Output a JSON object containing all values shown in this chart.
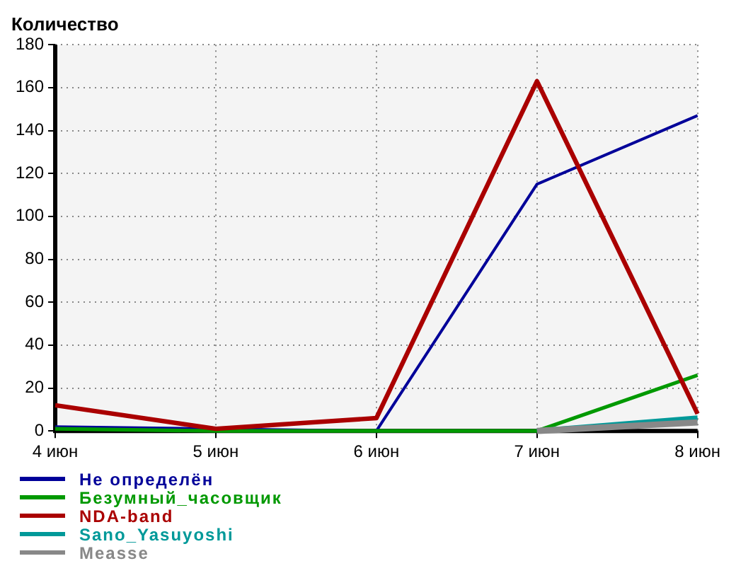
{
  "chart_data": {
    "type": "line",
    "ylabel": "Количество",
    "categories": [
      "4 июн",
      "5 июн",
      "6 июн",
      "7 июн",
      "8 июн"
    ],
    "series": [
      {
        "name": "Не определён",
        "color": "#000099",
        "values": [
          2,
          1,
          0,
          115,
          147
        ]
      },
      {
        "name": "Безумный_часовщик",
        "color": "#009900",
        "values": [
          1,
          0,
          0,
          0,
          26
        ]
      },
      {
        "name": "NDA-band",
        "color": "#aa0000",
        "values": [
          12,
          1,
          6,
          163,
          8
        ]
      },
      {
        "name": "Sano_Yasuyoshi",
        "color": "#009999",
        "values": [
          null,
          null,
          null,
          0,
          6
        ]
      },
      {
        "name": "Measse",
        "color": "#888888",
        "values": [
          null,
          null,
          null,
          0,
          4
        ]
      }
    ],
    "ylim": [
      0,
      180
    ],
    "yticks": [
      0,
      20,
      40,
      60,
      80,
      100,
      120,
      140,
      160,
      180
    ],
    "grid": true,
    "legend": "bottom",
    "marker": "none",
    "line_style": "solid"
  }
}
